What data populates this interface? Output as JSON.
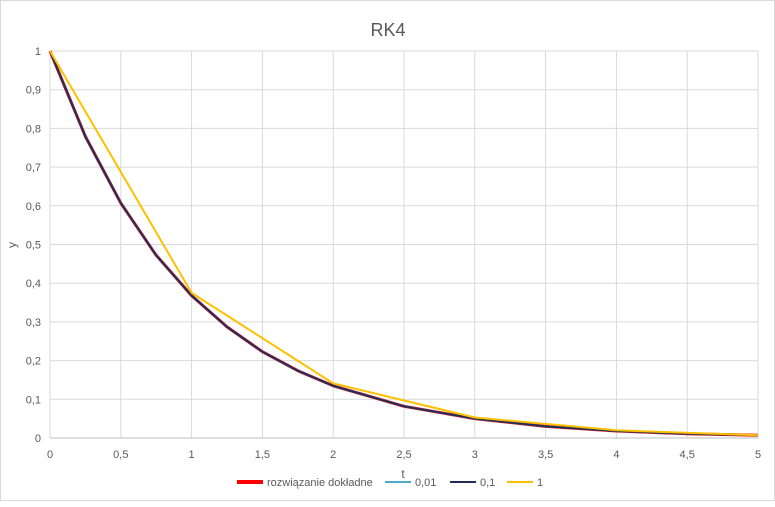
{
  "chart_data": {
    "type": "line",
    "title": "RK4",
    "xlabel": "t",
    "ylabel": "y",
    "xlim": [
      0,
      5
    ],
    "ylim": [
      0,
      1
    ],
    "x_ticks": [
      "0",
      "0,5",
      "1",
      "1,5",
      "2",
      "2,5",
      "3",
      "3,5",
      "4",
      "4,5",
      "5"
    ],
    "y_ticks": [
      "0",
      "0,1",
      "0,2",
      "0,3",
      "0,4",
      "0,5",
      "0,6",
      "0,7",
      "0,8",
      "0,9",
      "1"
    ],
    "grid": true,
    "legend_position": "bottom",
    "series": [
      {
        "name": "rozwiązanie dokładne",
        "color": "#ff0000",
        "x": [
          0,
          0.25,
          0.5,
          0.75,
          1,
          1.25,
          1.5,
          1.75,
          2,
          2.5,
          3,
          3.5,
          4,
          4.5,
          5
        ],
        "y": [
          1,
          0.779,
          0.607,
          0.472,
          0.368,
          0.287,
          0.223,
          0.174,
          0.135,
          0.082,
          0.05,
          0.03,
          0.018,
          0.011,
          0.007
        ]
      },
      {
        "name": "0,01",
        "color": "#4bacc6",
        "x": [
          0,
          0.25,
          0.5,
          0.75,
          1,
          1.25,
          1.5,
          1.75,
          2,
          2.5,
          3,
          3.5,
          4,
          4.5,
          5
        ],
        "y": [
          1,
          0.779,
          0.607,
          0.472,
          0.368,
          0.287,
          0.223,
          0.174,
          0.135,
          0.082,
          0.05,
          0.03,
          0.018,
          0.011,
          0.007
        ]
      },
      {
        "name": "0,1",
        "color": "#1f2d5a",
        "x": [
          0,
          0.25,
          0.5,
          0.75,
          1,
          1.25,
          1.5,
          1.75,
          2,
          2.5,
          3,
          3.5,
          4,
          4.5,
          5
        ],
        "y": [
          1,
          0.779,
          0.607,
          0.472,
          0.368,
          0.287,
          0.223,
          0.174,
          0.135,
          0.082,
          0.05,
          0.03,
          0.018,
          0.011,
          0.007
        ]
      },
      {
        "name": "1",
        "color": "#ffc000",
        "x": [
          0,
          1,
          2,
          3,
          4,
          5
        ],
        "y": [
          1,
          0.375,
          0.141,
          0.053,
          0.02,
          0.007
        ]
      }
    ]
  }
}
